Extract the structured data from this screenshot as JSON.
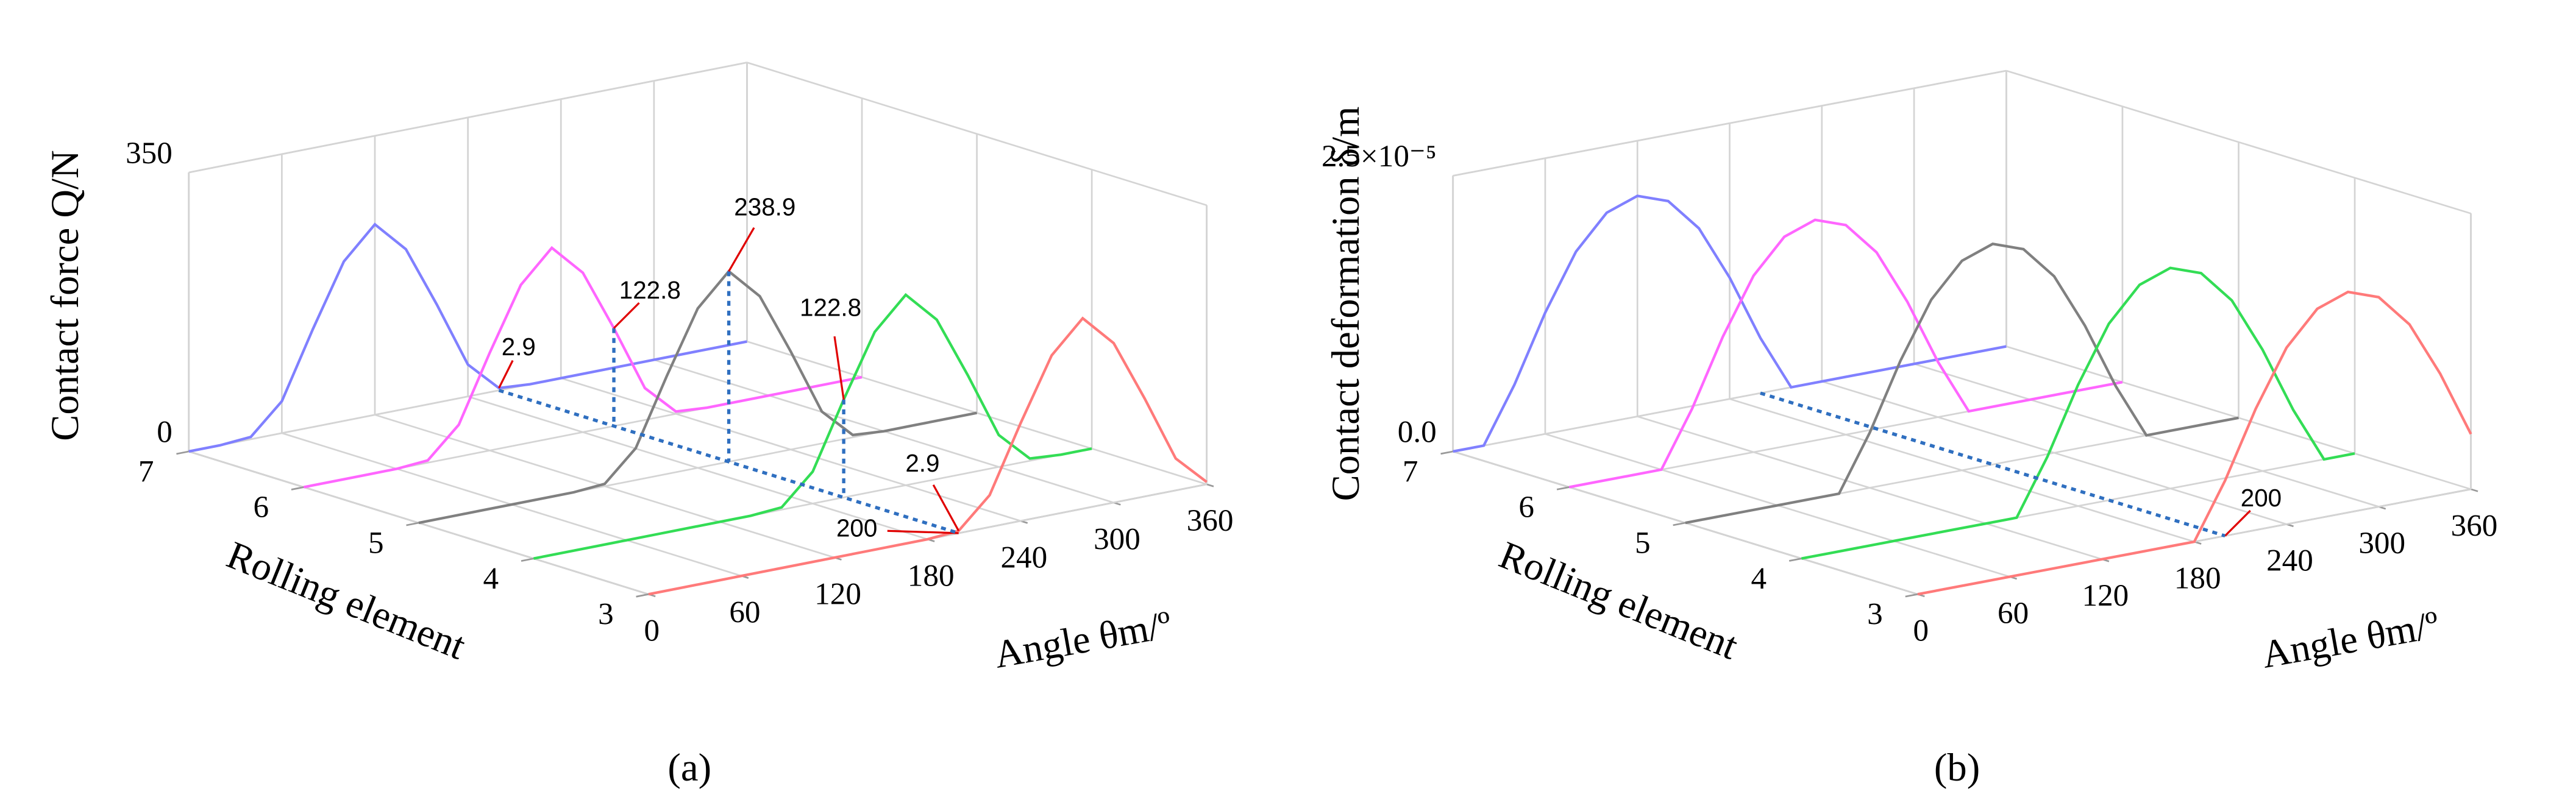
{
  "chart_data": [
    {
      "type": "waterfall3d",
      "y_label": "Contact force Q/N",
      "z_label": "Rolling element",
      "x_label": "Angle θm/º",
      "caption": "(a)",
      "xlim": [
        0,
        360
      ],
      "xticks": [
        0,
        60,
        120,
        180,
        240,
        300,
        360
      ],
      "ylim": [
        0,
        350
      ],
      "yticks": [
        0,
        350
      ],
      "zlim": [
        3,
        7
      ],
      "zticks": [
        3,
        4,
        5,
        6,
        7
      ],
      "grid": true,
      "x": [
        0,
        20,
        40,
        60,
        80,
        100,
        120,
        140,
        160,
        180,
        200,
        220,
        240,
        260,
        280,
        300,
        320,
        340,
        360
      ],
      "series": [
        {
          "z": 3,
          "color": "#ff7a7a",
          "values": [
            0,
            0,
            0,
            0,
            0,
            0,
            0,
            0,
            0,
            0,
            2.9,
            40,
            122.8,
            200,
            238.9,
            200,
            122.8,
            40,
            2.9
          ]
        },
        {
          "z": 4,
          "color": "#33dd55",
          "values": [
            0,
            0,
            0,
            0,
            0,
            0,
            0,
            0,
            2.9,
            40,
            122.8,
            200,
            238.9,
            200,
            122.8,
            40,
            2.9,
            0,
            0
          ]
        },
        {
          "z": 5,
          "color": "#808080",
          "values": [
            0,
            0,
            0,
            0,
            0,
            0,
            2.9,
            40,
            122.8,
            200,
            238.9,
            200,
            122.8,
            40,
            2.9,
            0,
            0,
            0,
            0
          ]
        },
        {
          "z": 6,
          "color": "#ff66ff",
          "values": [
            0,
            0,
            0,
            0,
            2.9,
            40,
            122.8,
            200,
            238.9,
            200,
            122.8,
            40,
            2.9,
            0,
            0,
            0,
            0,
            0,
            0
          ]
        },
        {
          "z": 7,
          "color": "#8080ff",
          "values": [
            0,
            0,
            2.9,
            40,
            122.8,
            200,
            238.9,
            200,
            122.8,
            40,
            2.9,
            0,
            0,
            0,
            0,
            0,
            0,
            0,
            0
          ]
        }
      ],
      "annotations": [
        "2.9",
        "122.8",
        "238.9",
        "122.8",
        "2.9",
        "200"
      ]
    },
    {
      "type": "waterfall3d",
      "y_label": "Contact deformation δ/m",
      "z_label": "Rolling element",
      "x_label": "Angle θm/º",
      "caption": "(b)",
      "xlim": [
        0,
        360
      ],
      "xticks": [
        0,
        60,
        120,
        180,
        240,
        300,
        360
      ],
      "ylim": [
        0,
        2.5e-05
      ],
      "yticks": [
        {
          "value": 0,
          "label": "0.0"
        },
        {
          "value": 2.5e-05,
          "label": "2.5×10⁻⁵"
        }
      ],
      "zlim": [
        3,
        7
      ],
      "zticks": [
        3,
        4,
        5,
        6,
        7
      ],
      "grid": true,
      "x": [
        0,
        20,
        40,
        60,
        80,
        100,
        120,
        140,
        160,
        180,
        200,
        220,
        240,
        260,
        280,
        300,
        320,
        340,
        360
      ],
      "series": [
        {
          "z": 3,
          "color": "#ff7a7a",
          "values": [
            0,
            0,
            0,
            0,
            0,
            0,
            0,
            0,
            0,
            0,
            5e-06,
            1.1e-05,
            1.6e-05,
            1.9e-05,
            2e-05,
            1.9e-05,
            1.6e-05,
            1.1e-05,
            5e-06
          ]
        },
        {
          "z": 4,
          "color": "#33dd55",
          "values": [
            0,
            0,
            0,
            0,
            0,
            0,
            0,
            0,
            5e-06,
            1.1e-05,
            1.6e-05,
            1.9e-05,
            2e-05,
            1.9e-05,
            1.6e-05,
            1.1e-05,
            5e-06,
            0,
            0
          ]
        },
        {
          "z": 5,
          "color": "#808080",
          "values": [
            0,
            0,
            0,
            0,
            0,
            0,
            5e-06,
            1.1e-05,
            1.6e-05,
            1.9e-05,
            2e-05,
            1.9e-05,
            1.6e-05,
            1.1e-05,
            5e-06,
            0,
            0,
            0,
            0
          ]
        },
        {
          "z": 6,
          "color": "#ff66ff",
          "values": [
            0,
            0,
            0,
            0,
            5e-06,
            1.1e-05,
            1.6e-05,
            1.9e-05,
            2e-05,
            1.9e-05,
            1.6e-05,
            1.1e-05,
            5e-06,
            0,
            0,
            0,
            0,
            0,
            0
          ]
        },
        {
          "z": 7,
          "color": "#8080ff",
          "values": [
            0,
            0,
            5e-06,
            1.1e-05,
            1.6e-05,
            1.9e-05,
            2e-05,
            1.9e-05,
            1.6e-05,
            1.1e-05,
            5e-06,
            0,
            0,
            0,
            0,
            0,
            0,
            0,
            0
          ]
        }
      ],
      "annotations": [
        "200"
      ]
    }
  ]
}
